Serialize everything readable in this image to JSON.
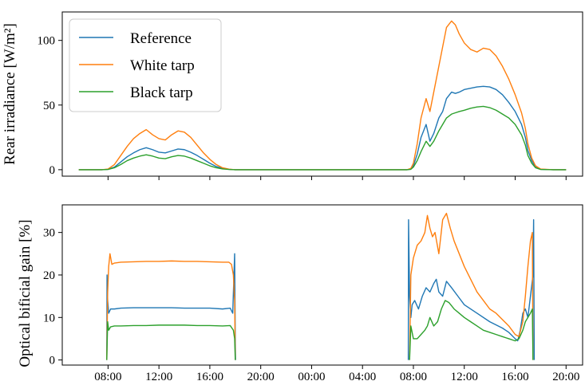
{
  "chart_data": [
    {
      "type": "line",
      "ylabel": "Rear irradiance [W/m²]",
      "ylim": [
        -5,
        122
      ],
      "yticks": [
        0,
        50,
        100
      ],
      "show_x_tick_labels": false,
      "legend_placement": "top-left",
      "grid": false,
      "series": [
        {
          "name": "Reference",
          "color": "#1f77b4",
          "x": [
            5.7,
            6.5,
            7.5,
            8.0,
            8.5,
            9.0,
            9.5,
            10.0,
            10.5,
            11.0,
            11.5,
            12.0,
            12.5,
            13.0,
            13.5,
            14.0,
            14.5,
            15.0,
            15.5,
            16.0,
            16.5,
            17.0,
            17.5,
            18.0,
            19.0,
            22.0,
            26.0,
            30.0,
            31.5,
            31.8,
            32.0,
            32.3,
            32.6,
            33.0,
            33.3,
            33.6,
            34.0,
            34.3,
            34.6,
            35.0,
            35.3,
            35.6,
            36.0,
            36.5,
            37.0,
            37.5,
            38.0,
            38.5,
            39.0,
            39.5,
            40.0,
            40.5,
            40.8,
            41.0,
            41.3,
            41.6,
            42.0,
            43.0,
            44.0
          ],
          "y": [
            0,
            0,
            0,
            0.3,
            2,
            6,
            10,
            13,
            15.5,
            17,
            15.5,
            13.5,
            13,
            14.5,
            16,
            15.5,
            13.5,
            11,
            8,
            5,
            2.5,
            1,
            0.3,
            0,
            0,
            0,
            0,
            0,
            0,
            0.5,
            3,
            12,
            25,
            35,
            22,
            28,
            40,
            45,
            55,
            60,
            59,
            60,
            62,
            63,
            64,
            64.5,
            64,
            62,
            58,
            52,
            45,
            35,
            25,
            15,
            7,
            2,
            0.3,
            0,
            0
          ]
        },
        {
          "name": "White tarp",
          "color": "#ff7f0e",
          "x": [
            5.7,
            6.5,
            7.5,
            8.0,
            8.5,
            9.0,
            9.5,
            10.0,
            10.5,
            11.0,
            11.5,
            12.0,
            12.5,
            13.0,
            13.5,
            14.0,
            14.5,
            15.0,
            15.5,
            16.0,
            16.5,
            17.0,
            17.5,
            18.0,
            19.0,
            22.0,
            26.0,
            30.0,
            31.5,
            31.8,
            32.0,
            32.3,
            32.6,
            33.0,
            33.3,
            33.6,
            34.0,
            34.3,
            34.6,
            35.0,
            35.3,
            35.6,
            36.0,
            36.5,
            37.0,
            37.5,
            38.0,
            38.5,
            39.0,
            39.5,
            40.0,
            40.5,
            40.8,
            41.0,
            41.3,
            41.6,
            42.0,
            43.0,
            44.0
          ],
          "y": [
            0,
            0,
            0,
            0.5,
            4,
            11,
            18,
            24,
            28,
            31,
            27,
            24,
            23,
            27,
            30,
            29,
            25,
            19,
            13,
            8,
            4,
            1.5,
            0.4,
            0,
            0,
            0,
            0,
            0,
            0,
            1,
            5,
            20,
            40,
            55,
            45,
            60,
            80,
            95,
            110,
            115,
            112,
            105,
            98,
            93,
            91,
            94,
            93,
            88,
            80,
            70,
            58,
            44,
            32,
            20,
            9,
            3,
            0.5,
            0,
            0
          ]
        },
        {
          "name": "Black tarp",
          "color": "#2ca02c",
          "x": [
            5.7,
            6.5,
            7.5,
            8.0,
            8.5,
            9.0,
            9.5,
            10.0,
            10.5,
            11.0,
            11.5,
            12.0,
            12.5,
            13.0,
            13.5,
            14.0,
            14.5,
            15.0,
            15.5,
            16.0,
            16.5,
            17.0,
            17.5,
            18.0,
            19.0,
            22.0,
            26.0,
            30.0,
            31.5,
            31.8,
            32.0,
            32.3,
            32.6,
            33.0,
            33.3,
            33.6,
            34.0,
            34.3,
            34.6,
            35.0,
            35.3,
            35.6,
            36.0,
            36.5,
            37.0,
            37.5,
            38.0,
            38.5,
            39.0,
            39.5,
            40.0,
            40.5,
            40.8,
            41.0,
            41.3,
            41.6,
            42.0,
            43.0,
            44.0
          ],
          "y": [
            0,
            0,
            0,
            0.2,
            1.5,
            4,
            7,
            9,
            10.5,
            11.5,
            10.5,
            9,
            8.5,
            10,
            11,
            10.5,
            9,
            7,
            5,
            3,
            1.5,
            0.6,
            0.2,
            0,
            0,
            0,
            0,
            0,
            0,
            0.3,
            2,
            7,
            14,
            22,
            18,
            22,
            30,
            35,
            40,
            43,
            44,
            45,
            46,
            47.5,
            48.5,
            49,
            48,
            46,
            43,
            40,
            35,
            27,
            19,
            11,
            5,
            1.5,
            0.2,
            0,
            0
          ]
        }
      ]
    },
    {
      "type": "line",
      "ylabel": "Optical bificial gain [%]",
      "ylim": [
        -1.2,
        36.5
      ],
      "yticks": [
        0,
        10,
        20,
        30
      ],
      "xticks": [
        8,
        12,
        16,
        20,
        24,
        28,
        32,
        36,
        40,
        44
      ],
      "xticklabels": [
        "08:00",
        "12:00",
        "16:00",
        "20:00",
        "00:00",
        "04:00",
        "08:00",
        "12:00",
        "16:00",
        "20:00"
      ],
      "grid": false,
      "series": [
        {
          "name": "Reference",
          "color": "#1f77b4",
          "x": [
            7.9,
            7.92,
            7.97,
            8.05,
            8.2,
            8.5,
            9.0,
            10.0,
            11.0,
            12.0,
            13.0,
            14.0,
            15.0,
            16.0,
            17.0,
            17.6,
            17.8,
            17.95,
            18.0,
            18.02,
            null,
            31.6,
            31.62,
            31.7,
            31.8,
            31.9,
            32.1,
            32.4,
            32.7,
            33.0,
            33.3,
            33.6,
            33.8,
            34.0,
            34.3,
            34.6,
            35.0,
            35.5,
            36.0,
            37.0,
            38.0,
            39.0,
            39.5,
            40.0,
            40.2,
            40.4,
            40.6,
            40.8,
            41.0,
            41.2,
            41.4,
            41.45,
            41.5
          ],
          "y": [
            0,
            20,
            14,
            11,
            12,
            12,
            12.2,
            12.3,
            12.3,
            12.3,
            12.3,
            12.2,
            12.2,
            12.2,
            12,
            12.2,
            11,
            25,
            4,
            0,
            null,
            0,
            33,
            15,
            10,
            13,
            14,
            12,
            15,
            17,
            16,
            18,
            19,
            16,
            15,
            18.5,
            17,
            15,
            13,
            11,
            9,
            7.5,
            6.5,
            5,
            4.5,
            7,
            11,
            12,
            10,
            15,
            20,
            33,
            0
          ]
        },
        {
          "name": "White tarp",
          "color": "#ff7f0e",
          "x": [
            7.9,
            7.97,
            8.05,
            8.15,
            8.3,
            8.5,
            9.0,
            10.0,
            11.0,
            12.0,
            13.0,
            14.0,
            15.0,
            16.0,
            17.0,
            17.5,
            17.7,
            17.85,
            17.95,
            18.0,
            null,
            31.7,
            31.8,
            32.0,
            32.3,
            32.6,
            32.9,
            33.1,
            33.3,
            33.5,
            33.7,
            34.0,
            34.3,
            34.6,
            34.9,
            35.2,
            35.6,
            36.0,
            36.5,
            37.0,
            37.5,
            38.0,
            38.5,
            39.0,
            39.5,
            40.0,
            40.3,
            40.6,
            40.8,
            41.0,
            41.2,
            41.35,
            41.4
          ],
          "y": [
            0,
            16,
            22,
            25,
            22.5,
            22.8,
            23,
            23.1,
            23.2,
            23.2,
            23.3,
            23.2,
            23.2,
            23.1,
            23,
            23,
            22.5,
            20,
            14,
            0,
            null,
            0,
            20,
            24,
            27,
            28,
            30,
            34,
            31,
            29,
            30,
            25,
            33,
            34.5,
            31,
            28,
            25,
            22,
            19,
            16,
            14,
            12,
            11,
            9.5,
            8,
            6,
            5.5,
            9,
            15,
            22,
            28,
            30,
            0
          ]
        },
        {
          "name": "Black tarp",
          "color": "#2ca02c",
          "x": [
            7.9,
            7.97,
            8.05,
            8.2,
            8.5,
            9.0,
            10.0,
            11.0,
            12.0,
            13.0,
            14.0,
            15.0,
            16.0,
            17.0,
            17.6,
            17.85,
            17.95,
            18.0,
            null,
            31.7,
            31.8,
            32.0,
            32.3,
            32.6,
            32.9,
            33.1,
            33.3,
            33.6,
            33.9,
            34.2,
            34.5,
            34.8,
            35.2,
            35.6,
            36.0,
            36.5,
            37.0,
            37.5,
            38.0,
            38.5,
            39.0,
            39.5,
            40.0,
            40.3,
            40.6,
            40.8,
            41.0,
            41.2,
            41.35,
            41.4
          ],
          "y": [
            0,
            9,
            7,
            7.8,
            8,
            8,
            8.1,
            8.1,
            8.2,
            8.2,
            8.2,
            8.1,
            8.1,
            8,
            8.1,
            7,
            5,
            0,
            null,
            0,
            8,
            5,
            5,
            6,
            7,
            8,
            10,
            8,
            9,
            12,
            14,
            13.5,
            12,
            11,
            10,
            9,
            8,
            7,
            6.5,
            6,
            5.5,
            5,
            4.5,
            5,
            7,
            9,
            10,
            11,
            12,
            0
          ]
        }
      ]
    }
  ]
}
